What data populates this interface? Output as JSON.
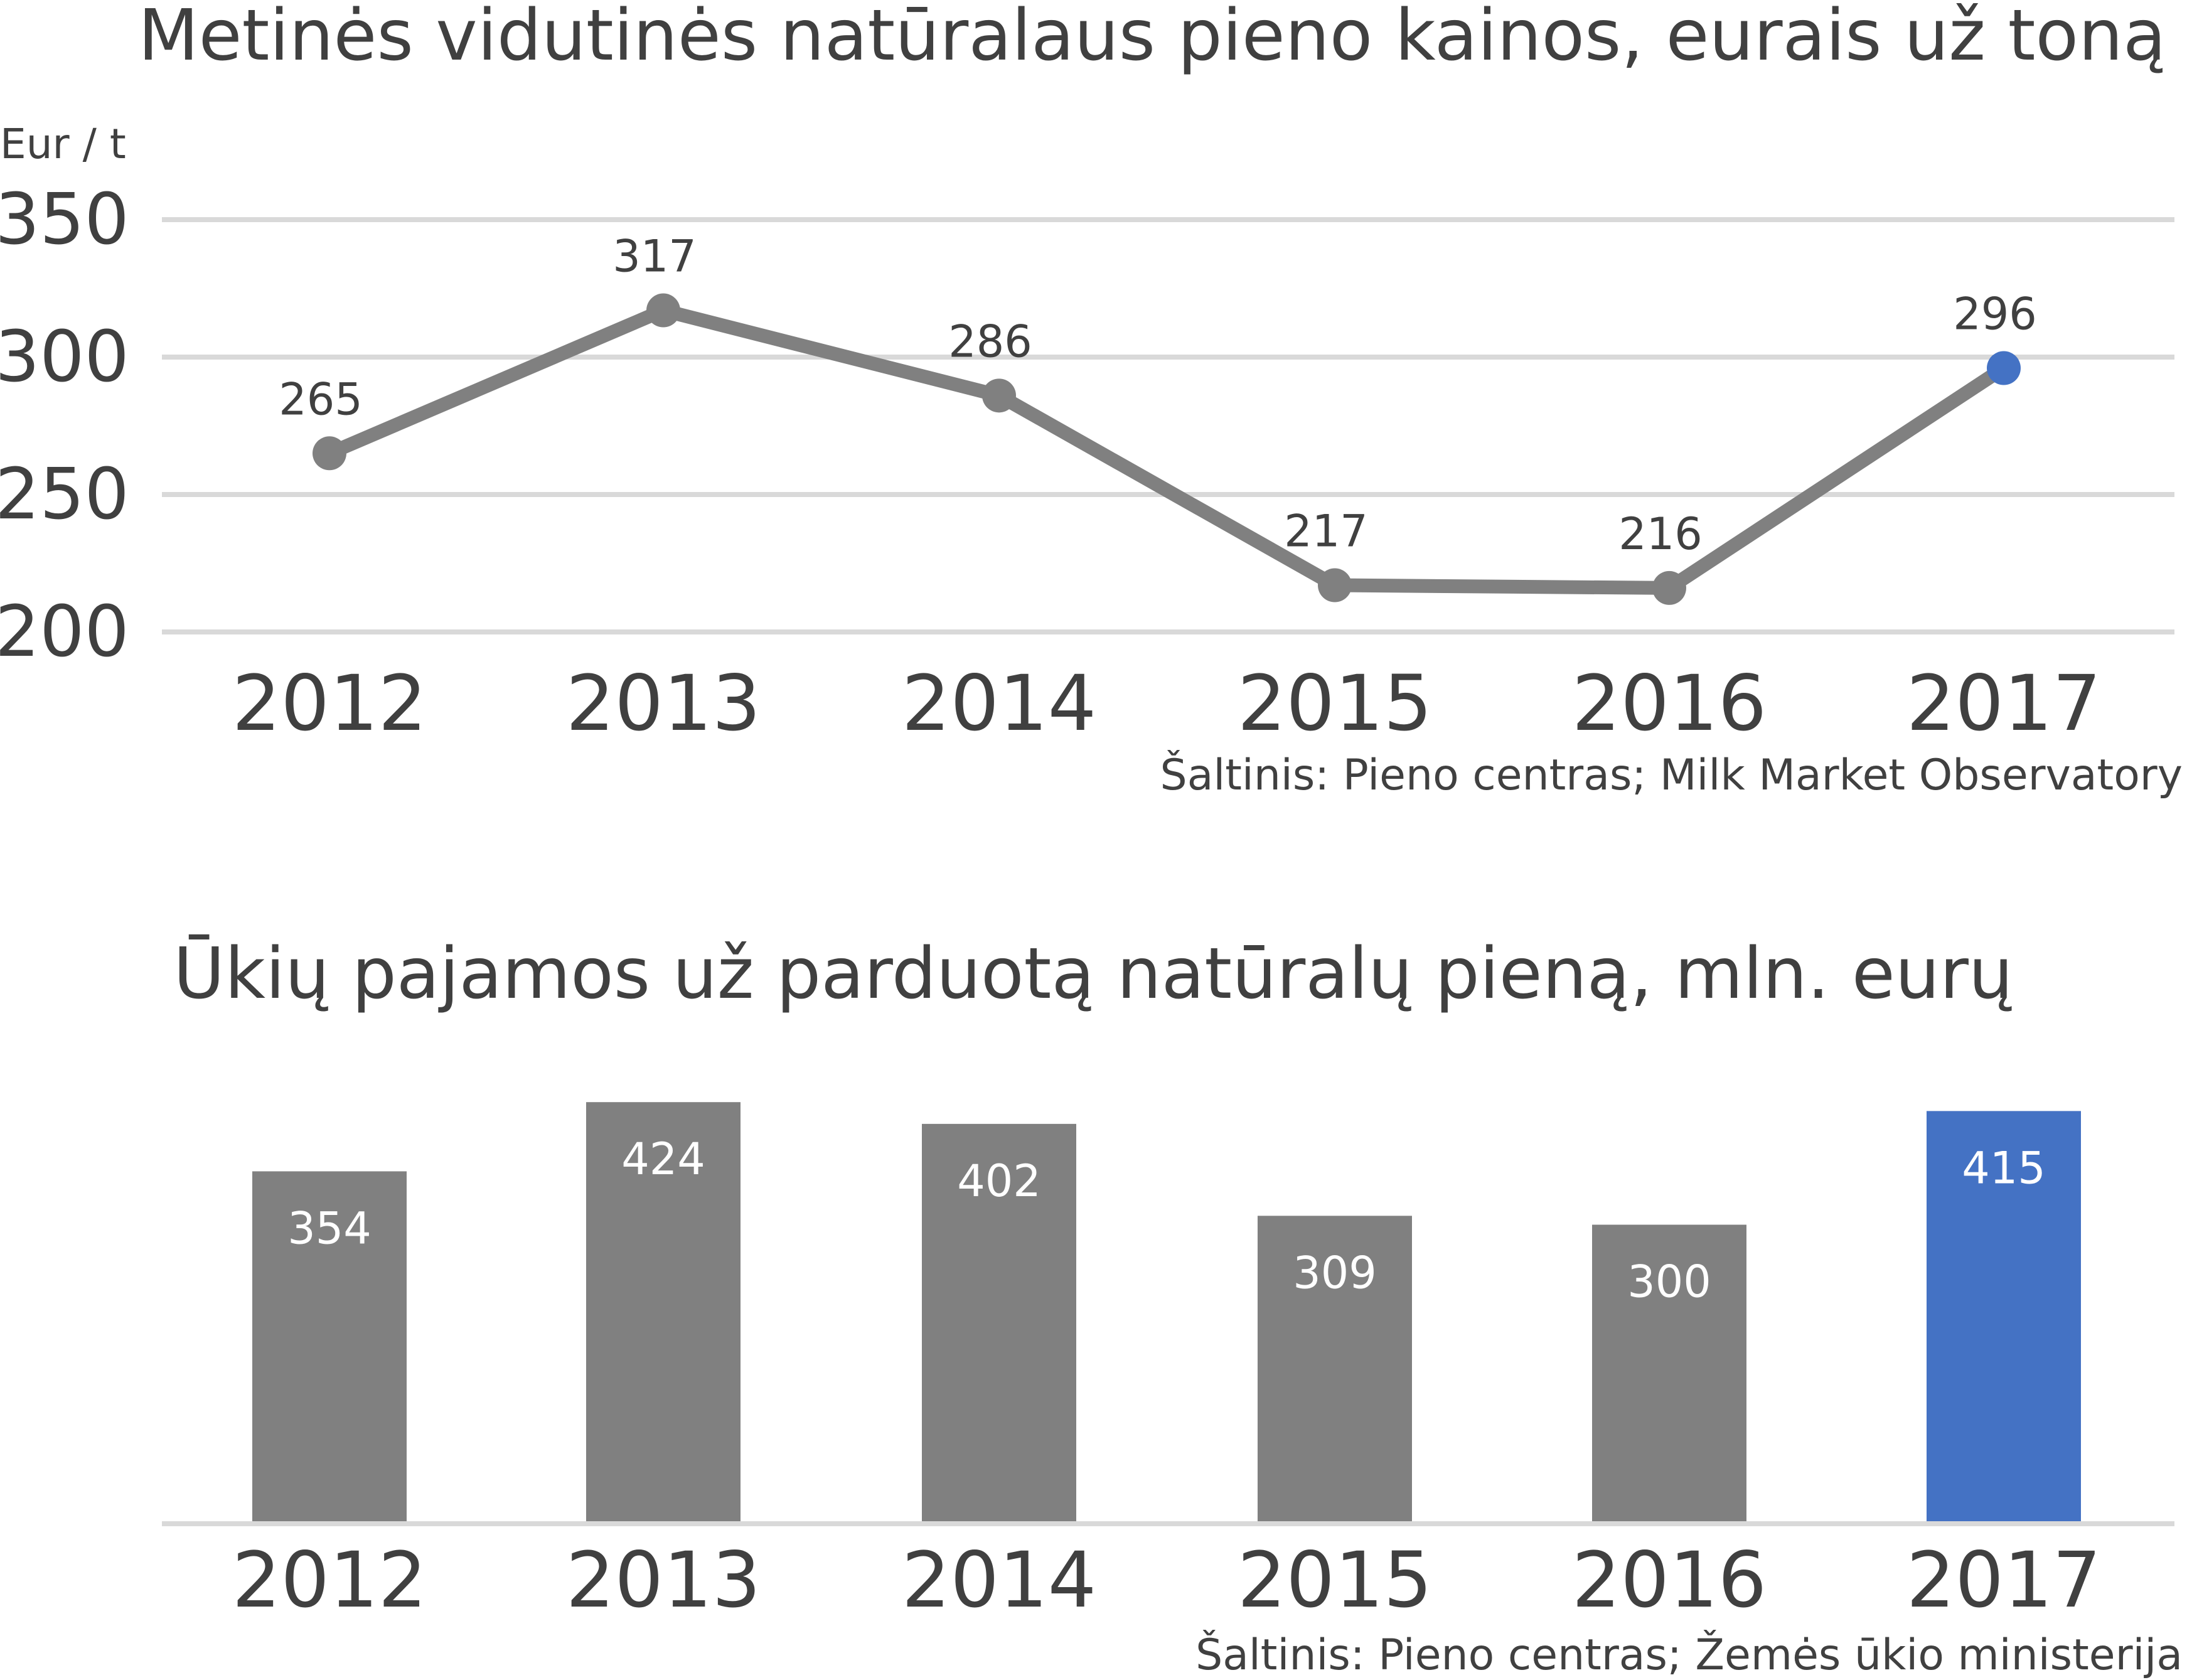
{
  "chart_data": [
    {
      "type": "line",
      "title": "Metinės vidutinės natūralaus pieno kainos, eurais už toną",
      "ylabel": "Eur / t",
      "categories": [
        "2012",
        "2013",
        "2014",
        "2015",
        "2016",
        "2017"
      ],
      "values": [
        265,
        317,
        286,
        217,
        216,
        296
      ],
      "data_labels": [
        "265",
        "317",
        "286",
        "217",
        "216",
        "296"
      ],
      "yticks": [
        "200",
        "250",
        "300",
        "350"
      ],
      "ylim": [
        200,
        350
      ],
      "grid": true,
      "source": "Šaltinis: Pieno centras; Milk Market Observatory",
      "colors": {
        "default": "#808080",
        "highlight": "#4472C4"
      }
    },
    {
      "type": "bar",
      "title": "Ūkių pajamos už parduotą natūralų pieną, mln. eurų",
      "categories": [
        "2012",
        "2013",
        "2014",
        "2015",
        "2016",
        "2017"
      ],
      "values": [
        354,
        424,
        402,
        309,
        300,
        415
      ],
      "data_labels": [
        "354",
        "424",
        "402",
        "309",
        "300",
        "415"
      ],
      "source": "Šaltinis: Pieno centras; Žemės ūkio ministerija",
      "colors": {
        "default": "#808080",
        "highlight": "#4472C4"
      }
    }
  ]
}
